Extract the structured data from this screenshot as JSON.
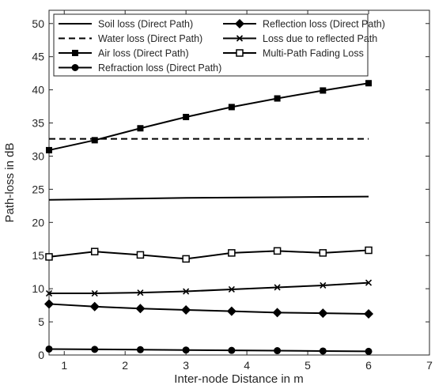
{
  "chart_data": {
    "type": "line",
    "xlabel": "Inter-node Distance in m",
    "ylabel": "Path-loss in dB",
    "xlim": [
      0.75,
      7
    ],
    "ylim": [
      0,
      52
    ],
    "xticks": [
      1,
      2,
      3,
      4,
      5,
      6,
      7
    ],
    "yticks": [
      0,
      5,
      10,
      15,
      20,
      25,
      30,
      35,
      40,
      45,
      50
    ],
    "grid": false,
    "legend_position": "top",
    "legend_columns": 2,
    "x": [
      0.75,
      1.5,
      2.25,
      3,
      3.75,
      4.5,
      5.25,
      6
    ],
    "series": [
      {
        "name": "Soil loss (Direct Path)",
        "marker": "none",
        "line": "solid",
        "values": [
          23.4,
          23.5,
          23.6,
          23.7,
          23.75,
          23.8,
          23.85,
          23.9
        ]
      },
      {
        "name": "Reflection loss (Direct Path)",
        "marker": "diamond",
        "line": "solid",
        "values": [
          7.7,
          7.3,
          7.0,
          6.8,
          6.6,
          6.4,
          6.3,
          6.2
        ]
      },
      {
        "name": "Water loss (Direct Path)",
        "marker": "none",
        "line": "dashed",
        "values": [
          32.6,
          32.6,
          32.6,
          32.6,
          32.6,
          32.6,
          32.6,
          32.6
        ]
      },
      {
        "name": "Loss due to reflected Path",
        "marker": "x",
        "line": "solid",
        "values": [
          9.3,
          9.3,
          9.4,
          9.6,
          9.9,
          10.2,
          10.5,
          10.9
        ]
      },
      {
        "name": "Air loss (Direct Path)",
        "marker": "square-filled",
        "line": "solid",
        "values": [
          30.9,
          32.4,
          34.2,
          35.9,
          37.4,
          38.7,
          39.9,
          41.0
        ]
      },
      {
        "name": "Multi-Path Fading Loss",
        "marker": "square-open",
        "line": "solid",
        "values": [
          14.8,
          15.6,
          15.1,
          14.5,
          15.4,
          15.7,
          15.4,
          15.8
        ]
      },
      {
        "name": "Refraction loss (Direct Path)",
        "marker": "circle",
        "line": "solid",
        "values": [
          0.9,
          0.85,
          0.8,
          0.75,
          0.7,
          0.65,
          0.6,
          0.55
        ]
      }
    ]
  }
}
